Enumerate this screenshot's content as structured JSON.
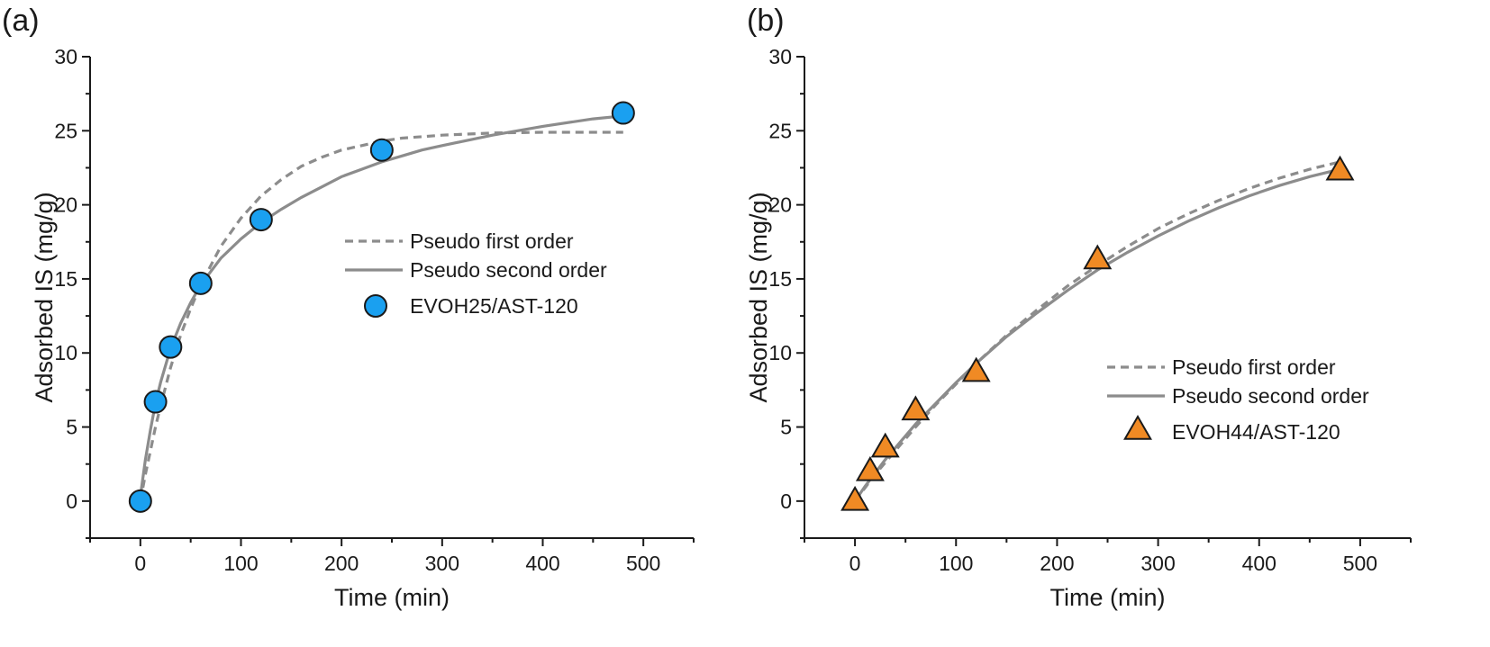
{
  "chart_data": [
    {
      "type": "scatter",
      "panel_label": "(a)",
      "xlabel": "Time (min)",
      "ylabel": "Adsorbed IS (mg/g)",
      "xlim": [
        -50,
        550
      ],
      "ylim": [
        -2.5,
        30
      ],
      "xticks": [
        0,
        100,
        200,
        300,
        400,
        500
      ],
      "yticks": [
        0,
        5,
        10,
        15,
        20,
        25,
        30
      ],
      "grid": false,
      "legend_placement": "center-right",
      "series": [
        {
          "name": "Pseudo first order",
          "kind": "line",
          "style": "dashed",
          "color": "#8c8c8c",
          "x": [
            0,
            5,
            10,
            15,
            20,
            30,
            40,
            50,
            60,
            80,
            100,
            120,
            140,
            160,
            180,
            200,
            220,
            240,
            260,
            280,
            300,
            350,
            400,
            450,
            480
          ],
          "y": [
            0,
            1.8,
            3.4,
            5.0,
            6.4,
            9.0,
            11.2,
            13.0,
            14.6,
            17.2,
            19.1,
            20.6,
            21.7,
            22.6,
            23.2,
            23.7,
            24.0,
            24.3,
            24.5,
            24.6,
            24.7,
            24.85,
            24.9,
            24.9,
            24.9
          ]
        },
        {
          "name": "Pseudo second order",
          "kind": "line",
          "style": "solid",
          "color": "#8c8c8c",
          "x": [
            0,
            5,
            10,
            15,
            20,
            30,
            40,
            50,
            60,
            80,
            100,
            120,
            140,
            160,
            180,
            200,
            220,
            240,
            260,
            280,
            300,
            350,
            400,
            450,
            480
          ],
          "y": [
            0.3,
            2.8,
            4.8,
            6.6,
            8.0,
            10.3,
            12.0,
            13.4,
            14.6,
            16.4,
            17.7,
            18.8,
            19.7,
            20.5,
            21.2,
            21.9,
            22.4,
            22.9,
            23.3,
            23.7,
            24.0,
            24.7,
            25.3,
            25.8,
            26.0
          ]
        },
        {
          "name": "EVOH25/AST-120",
          "kind": "marker",
          "marker": "circle",
          "color": "#1aa0f0",
          "x": [
            0,
            15,
            30,
            60,
            120,
            240,
            480
          ],
          "y": [
            0,
            6.7,
            10.4,
            14.7,
            19.0,
            23.7,
            26.2
          ]
        }
      ]
    },
    {
      "type": "scatter",
      "panel_label": "(b)",
      "xlabel": "Time (min)",
      "ylabel": "Adsorbed IS (mg/g)",
      "xlim": [
        -50,
        550
      ],
      "ylim": [
        -2.5,
        30
      ],
      "xticks": [
        0,
        100,
        200,
        300,
        400,
        500
      ],
      "yticks": [
        0,
        5,
        10,
        15,
        20,
        25,
        30
      ],
      "grid": false,
      "legend_placement": "bottom-right",
      "series": [
        {
          "name": "Pseudo first order",
          "kind": "line",
          "style": "dashed",
          "color": "#8c8c8c",
          "x": [
            0,
            10,
            20,
            30,
            40,
            60,
            80,
            100,
            120,
            150,
            180,
            210,
            240,
            270,
            300,
            330,
            360,
            390,
            420,
            450,
            480
          ],
          "y": [
            0,
            0.9,
            1.8,
            2.6,
            3.4,
            5.0,
            6.5,
            7.9,
            9.3,
            11.2,
            12.9,
            14.5,
            15.9,
            17.2,
            18.4,
            19.4,
            20.3,
            21.1,
            21.8,
            22.4,
            22.9
          ]
        },
        {
          "name": "Pseudo second order",
          "kind": "line",
          "style": "solid",
          "color": "#8c8c8c",
          "x": [
            0,
            10,
            20,
            30,
            40,
            60,
            80,
            100,
            120,
            150,
            180,
            210,
            240,
            270,
            300,
            330,
            360,
            390,
            420,
            450,
            480
          ],
          "y": [
            0,
            1.0,
            1.9,
            2.8,
            3.6,
            5.2,
            6.6,
            8.0,
            9.3,
            11.1,
            12.7,
            14.2,
            15.6,
            16.8,
            17.9,
            18.9,
            19.8,
            20.6,
            21.3,
            21.9,
            22.4
          ]
        },
        {
          "name": "EVOH44/AST-120",
          "kind": "marker",
          "marker": "triangle",
          "color": "#f08a24",
          "x": [
            0,
            15,
            30,
            60,
            120,
            240,
            480
          ],
          "y": [
            0,
            2.0,
            3.6,
            6.1,
            8.7,
            16.3,
            22.3
          ]
        }
      ]
    }
  ]
}
